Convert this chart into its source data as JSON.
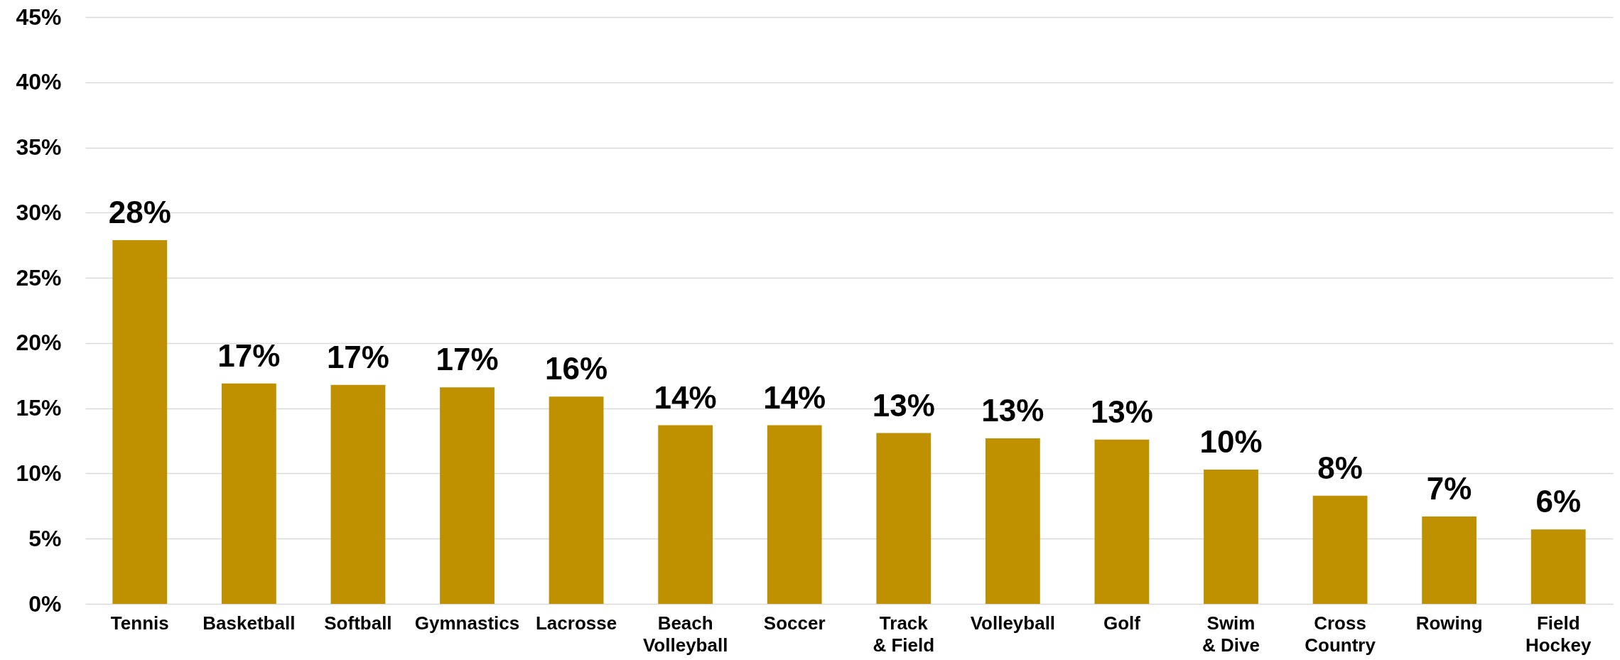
{
  "chart_data": {
    "type": "bar",
    "categories": [
      "Tennis",
      "Basketball",
      "Softball",
      "Gymnastics",
      "Lacrosse",
      "Beach\nVolleyball",
      "Soccer",
      "Track\n& Field",
      "Volleyball",
      "Golf",
      "Swim\n& Dive",
      "Cross\nCountry",
      "Rowing",
      "Field\nHockey"
    ],
    "values": [
      27.9,
      16.9,
      16.8,
      16.6,
      15.9,
      13.7,
      13.7,
      13.1,
      12.7,
      12.6,
      10.3,
      8.3,
      6.7,
      5.7
    ],
    "value_labels": [
      "28%",
      "17%",
      "17%",
      "17%",
      "16%",
      "14%",
      "14%",
      "13%",
      "13%",
      "13%",
      "10%",
      "8%",
      "7%",
      "6%"
    ],
    "color": "#bf9000",
    "ylim": [
      0,
      45
    ],
    "yticks": [
      {
        "value": 0,
        "label": "0%"
      },
      {
        "value": 5,
        "label": "5%"
      },
      {
        "value": 10,
        "label": "10%"
      },
      {
        "value": 15,
        "label": "15%"
      },
      {
        "value": 20,
        "label": "20%"
      },
      {
        "value": 25,
        "label": "25%"
      },
      {
        "value": 30,
        "label": "30%"
      },
      {
        "value": 35,
        "label": "35%"
      },
      {
        "value": 40,
        "label": "40%"
      },
      {
        "value": 45,
        "label": "45%"
      }
    ],
    "grid": "y"
  }
}
